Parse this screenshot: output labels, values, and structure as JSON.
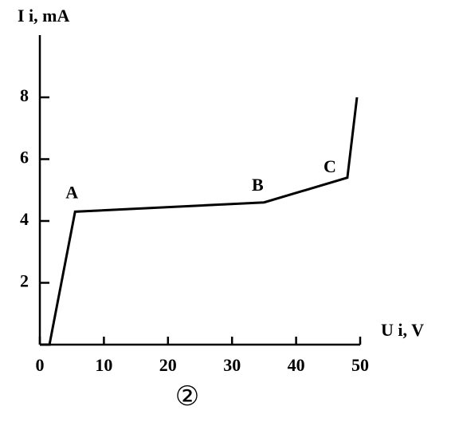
{
  "chart_data": {
    "type": "line",
    "y_label": "I i, mA",
    "x_label": "U i, V",
    "caption": "②",
    "x": [
      0,
      1.5,
      5.5,
      35,
      48,
      49.5
    ],
    "series": [
      {
        "name": "Ii",
        "color": "#000000",
        "values": [
          0,
          0,
          4.3,
          4.6,
          5.4,
          8
        ]
      }
    ],
    "annotations": [
      "A",
      "B",
      "C"
    ],
    "xlim": [
      0,
      50
    ],
    "xticks": [
      0,
      10,
      20,
      30,
      40,
      50
    ],
    "ylim": [
      0,
      10
    ],
    "yticks": [
      2,
      4,
      6,
      8
    ],
    "grid": false
  }
}
